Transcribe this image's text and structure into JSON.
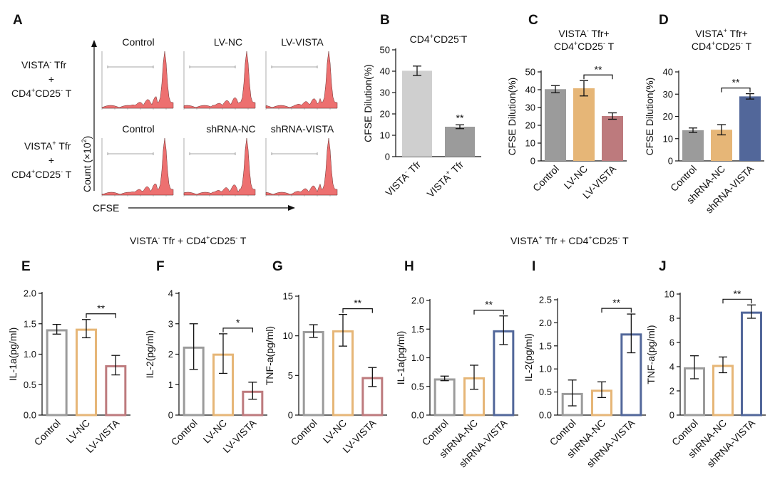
{
  "colors": {
    "control": "#9b9b9b",
    "lv_nc": "#e6b677",
    "lv_vista": "#bd7a7d",
    "shrna_nc": "#e6b677",
    "shrna_vista": "#52679a",
    "b_vista_neg": "#cfcfcf",
    "b_vista_pos": "#9b9b9b",
    "histogram": "#ea5757"
  },
  "panel_a": {
    "label": "A",
    "top_row": {
      "labels": [
        "Control",
        "LV-NC",
        "LV-VISTA"
      ]
    },
    "bottom_row": {
      "labels": [
        "Control",
        "shRNA-NC",
        "shRNA-VISTA"
      ]
    },
    "row_label_top": {
      "l1": "VISTA",
      "l1_sup": "-",
      "l1_rest": " Tfr",
      "l2": "+",
      "l3": "CD4",
      "l3_sup1": "+",
      "l3_mid": "CD25",
      "l3_sup2": "-",
      "l3_rest": " T"
    },
    "row_label_bottom": {
      "l1": "VISTA",
      "l1_sup": "+",
      "l1_rest": " Tfr",
      "l2": "+",
      "l3": "CD4",
      "l3_sup1": "+",
      "l3_mid": "CD25",
      "l3_sup2": "-",
      "l3_rest": " T"
    },
    "y_axis_label": "Count (×10",
    "y_axis_sup": "2",
    "y_axis_close": ")",
    "x_axis_label": "CFSE"
  },
  "section_left": {
    "p1": "VISTA",
    "s1": "-",
    "p2": " Tfr + CD4",
    "s2": "+",
    "p3": "CD25",
    "s3": "-",
    "p4": " T"
  },
  "section_right": {
    "p1": "VISTA",
    "s1": "+",
    "p2": " Tfr + CD4",
    "s2": "+",
    "p3": "CD25",
    "s3": "-",
    "p4": " T"
  },
  "chart_data": [
    {
      "id": "B",
      "type": "bar",
      "style": "filled",
      "title_lines": [
        {
          "p1": "CD4",
          "s1": "+",
          "p2": "CD25",
          "s2": "-",
          "p3": "T"
        }
      ],
      "ylabel": "CFSE Dilution(%)",
      "ylim": [
        0,
        50
      ],
      "ticks": [
        0,
        10,
        20,
        30,
        40,
        50
      ],
      "categories": [
        {
          "base": "VISTA",
          "sup": "-",
          "rest": " Tfr"
        },
        {
          "base": "VISTA",
          "sup": "+",
          "rest": " Tfr"
        }
      ],
      "values": [
        40.2,
        14.0
      ],
      "errors": [
        2.2,
        0.9
      ],
      "color_keys": [
        "b_vista_neg",
        "b_vista_pos"
      ],
      "annotations": [
        {
          "type": "star",
          "bar": 1,
          "text": "**"
        }
      ]
    },
    {
      "id": "C",
      "type": "bar",
      "style": "filled",
      "title_lines": [
        {
          "p1": "VISTA",
          "s1": "-",
          "p2": " Tfr+",
          "s2": "",
          "p3": ""
        },
        {
          "p1": "CD4",
          "s1": "+",
          "p2": "CD25",
          "s2": "-",
          "p3": " T"
        }
      ],
      "ylabel": "CFSE Dilution(%)",
      "ylim": [
        0,
        50
      ],
      "ticks": [
        0,
        10,
        20,
        30,
        40,
        50
      ],
      "categories": [
        {
          "base": "Control"
        },
        {
          "base": "LV-NC"
        },
        {
          "base": "LV-VISTA"
        }
      ],
      "values": [
        40.3,
        40.8,
        25.2
      ],
      "errors": [
        2.0,
        4.3,
        1.8
      ],
      "color_keys": [
        "control",
        "lv_nc",
        "lv_vista"
      ],
      "annotations": [
        {
          "type": "bracket",
          "from": 1,
          "to": 2,
          "text": "**"
        }
      ]
    },
    {
      "id": "D",
      "type": "bar",
      "style": "filled",
      "title_lines": [
        {
          "p1": "VISTA",
          "s1": "+",
          "p2": " Tfr+",
          "s2": "",
          "p3": ""
        },
        {
          "p1": "CD4",
          "s1": "+",
          "p2": "CD25",
          "s2": "-",
          "p3": " T"
        }
      ],
      "ylabel": "CFSE Dilution(%)",
      "ylim": [
        0,
        40
      ],
      "ticks": [
        0,
        10,
        20,
        30,
        40
      ],
      "categories": [
        {
          "base": "Control"
        },
        {
          "base": "shRNA-NC"
        },
        {
          "base": "shRNA-VISTA"
        }
      ],
      "values": [
        13.8,
        14.0,
        29.0
      ],
      "errors": [
        1.0,
        2.3,
        1.2
      ],
      "color_keys": [
        "control",
        "shrna_nc",
        "shrna_vista"
      ],
      "annotations": [
        {
          "type": "bracket",
          "from": 1,
          "to": 2,
          "text": "**"
        }
      ]
    },
    {
      "id": "E",
      "type": "bar",
      "style": "hollow",
      "title_lines": [],
      "ylabel": "IL-1a(pg/ml)",
      "ylim": [
        0,
        2.0
      ],
      "ticks": [
        "0.0",
        "0.5",
        "1.0",
        "1.5",
        "2.0"
      ],
      "categories": [
        {
          "base": "Control"
        },
        {
          "base": "LV-NC"
        },
        {
          "base": "LV-VISTA"
        }
      ],
      "values": [
        1.41,
        1.42,
        0.82
      ],
      "errors": [
        0.08,
        0.15,
        0.16
      ],
      "color_keys": [
        "control",
        "lv_nc",
        "lv_vista"
      ],
      "annotations": [
        {
          "type": "bracket",
          "from": 1,
          "to": 2,
          "text": "**"
        }
      ]
    },
    {
      "id": "F",
      "type": "bar",
      "style": "hollow",
      "title_lines": [],
      "ylabel": "IL-2(pg/ml)",
      "ylim": [
        0,
        4
      ],
      "ticks": [
        "0",
        "1",
        "2",
        "3",
        "4"
      ],
      "categories": [
        {
          "base": "Control"
        },
        {
          "base": "LV-NC"
        },
        {
          "base": "LV-VISTA"
        }
      ],
      "values": [
        2.25,
        2.02,
        0.8
      ],
      "errors": [
        0.75,
        0.65,
        0.28
      ],
      "color_keys": [
        "control",
        "lv_nc",
        "lv_vista"
      ],
      "annotations": [
        {
          "type": "bracket",
          "from": 1,
          "to": 2,
          "text": "*"
        }
      ]
    },
    {
      "id": "G",
      "type": "bar",
      "style": "hollow",
      "title_lines": [],
      "ylabel": "TNF-a(pg/ml)",
      "ylim": [
        0,
        15
      ],
      "ticks": [
        "0",
        "5",
        "10",
        "15"
      ],
      "categories": [
        {
          "base": "Control"
        },
        {
          "base": "LV-NC"
        },
        {
          "base": "LV-VISTA"
        }
      ],
      "values": [
        10.6,
        10.7,
        4.8
      ],
      "errors": [
        0.8,
        2.0,
        1.2
      ],
      "color_keys": [
        "control",
        "lv_nc",
        "lv_vista"
      ],
      "annotations": [
        {
          "type": "bracket",
          "from": 1,
          "to": 2,
          "text": "**"
        }
      ]
    },
    {
      "id": "H",
      "type": "bar",
      "style": "hollow",
      "title_lines": [],
      "ylabel": "IL-1a(pg/ml)",
      "ylim": [
        0,
        2.0
      ],
      "ticks": [
        "0.0",
        "0.5",
        "1.0",
        "1.5",
        "2.0"
      ],
      "categories": [
        {
          "base": "Control"
        },
        {
          "base": "shRNA-NC"
        },
        {
          "base": "shRNA-VISTA"
        }
      ],
      "values": [
        0.64,
        0.66,
        1.48
      ],
      "errors": [
        0.04,
        0.21,
        0.25
      ],
      "color_keys": [
        "control",
        "shrna_nc",
        "shrna_vista"
      ],
      "annotations": [
        {
          "type": "bracket",
          "from": 1,
          "to": 2,
          "text": "**"
        }
      ]
    },
    {
      "id": "I",
      "type": "bar",
      "style": "hollow",
      "title_lines": [],
      "ylabel": "IL-2(pg/ml)",
      "ylim": [
        0,
        2.5
      ],
      "ticks": [
        "0.0",
        "0.5",
        "1.0",
        "1.5",
        "2.0",
        "2.5"
      ],
      "categories": [
        {
          "base": "Control"
        },
        {
          "base": "shRNA-NC"
        },
        {
          "base": "shRNA-VISTA"
        }
      ],
      "values": [
        0.48,
        0.55,
        1.77
      ],
      "errors": [
        0.28,
        0.17,
        0.42
      ],
      "color_keys": [
        "control",
        "shrna_nc",
        "shrna_vista"
      ],
      "annotations": [
        {
          "type": "bracket",
          "from": 1,
          "to": 2,
          "text": "**"
        }
      ]
    },
    {
      "id": "J",
      "type": "bar",
      "style": "hollow",
      "title_lines": [],
      "ylabel": "TNF-a(pg/ml)",
      "ylim": [
        0,
        10
      ],
      "ticks": [
        "0",
        "2",
        "4",
        "6",
        "8",
        "10"
      ],
      "categories": [
        {
          "base": "Control"
        },
        {
          "base": "shRNA-NC"
        },
        {
          "base": "shRNA-VISTA"
        }
      ],
      "values": [
        3.95,
        4.15,
        8.55
      ],
      "errors": [
        0.95,
        0.65,
        0.55
      ],
      "color_keys": [
        "control",
        "shrna_nc",
        "shrna_vista"
      ],
      "annotations": [
        {
          "type": "bracket",
          "from": 1,
          "to": 2,
          "text": "**"
        }
      ]
    }
  ]
}
